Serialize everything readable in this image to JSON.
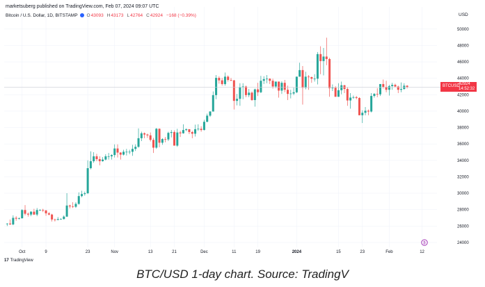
{
  "header": {
    "published": "marketsuberg published on TradingView.com, Feb 07, 2024 09:07 UTC",
    "symbol_title": "Bitcoin / U.S. Dollar, 1D, BITSTAMP",
    "ohlc": {
      "o_label": "O",
      "o": "43093",
      "h_label": "H",
      "h": "43173",
      "l_label": "L",
      "l": "42764",
      "c_label": "C",
      "c": "42924",
      "change": "−168 (−0.39%)"
    }
  },
  "axis": {
    "currency": "USD"
  },
  "price_tag": {
    "symbol": "BTCUSD",
    "last": "42924",
    "countdown": "14:52:32"
  },
  "logo": {
    "mark": "17",
    "text": "TradingView"
  },
  "caption": "BTC/USD 1-day chart. Source: TradingV",
  "colors": {
    "up": "#26a69a",
    "down": "#ef5350",
    "tag": "#f23645",
    "grid": "#f0f3fa"
  },
  "chart_data": {
    "type": "candlestick",
    "title": "Bitcoin / U.S. Dollar, 1D, BITSTAMP",
    "ylabel": "USD",
    "ylim": [
      23400,
      51000
    ],
    "yticks": [
      24000,
      26000,
      28000,
      30000,
      32000,
      34000,
      36000,
      38000,
      40000,
      42000,
      44000,
      46000,
      48000,
      50000
    ],
    "xticks": [
      {
        "label": "Oct",
        "date": "2023-10-01"
      },
      {
        "label": "9",
        "date": "2023-10-09"
      },
      {
        "label": "23",
        "date": "2023-10-23"
      },
      {
        "label": "Nov",
        "date": "2023-11-01"
      },
      {
        "label": "13",
        "date": "2023-11-13"
      },
      {
        "label": "21",
        "date": "2023-11-21"
      },
      {
        "label": "Dec",
        "date": "2023-12-01"
      },
      {
        "label": "11",
        "date": "2023-12-11"
      },
      {
        "label": "19",
        "date": "2023-12-19"
      },
      {
        "label": "2024",
        "date": "2024-01-01"
      },
      {
        "label": "15",
        "date": "2024-01-15"
      },
      {
        "label": "23",
        "date": "2024-01-23"
      },
      {
        "label": "Feb",
        "date": "2024-02-01"
      },
      {
        "label": "12",
        "date": "2024-02-12"
      }
    ],
    "last_price": 42924,
    "grid": true,
    "candles_ohlc": [
      [
        "2023-09-26",
        26250,
        26350,
        26000,
        26300
      ],
      [
        "2023-09-27",
        26300,
        26800,
        26150,
        26200
      ],
      [
        "2023-09-28",
        26200,
        27300,
        26100,
        27000
      ],
      [
        "2023-09-29",
        27000,
        27200,
        26650,
        26900
      ],
      [
        "2023-09-30",
        26900,
        27050,
        26800,
        26950
      ],
      [
        "2023-10-01",
        26950,
        28050,
        26900,
        27950
      ],
      [
        "2023-10-02",
        27950,
        28550,
        27300,
        27500
      ],
      [
        "2023-10-03",
        27500,
        27650,
        27150,
        27400
      ],
      [
        "2023-10-04",
        27400,
        27800,
        27200,
        27750
      ],
      [
        "2023-10-05",
        27750,
        28100,
        27350,
        27400
      ],
      [
        "2023-10-06",
        27400,
        28200,
        27200,
        27950
      ],
      [
        "2023-10-07",
        27950,
        28050,
        27850,
        27950
      ],
      [
        "2023-10-08",
        27950,
        28100,
        27700,
        27900
      ],
      [
        "2023-10-09",
        27900,
        27950,
        27250,
        27550
      ],
      [
        "2023-10-10",
        27550,
        27700,
        27300,
        27400
      ],
      [
        "2023-10-11",
        27400,
        27500,
        26550,
        26800
      ],
      [
        "2023-10-12",
        26800,
        26900,
        26550,
        26750
      ],
      [
        "2023-10-13",
        26750,
        27100,
        26700,
        26850
      ],
      [
        "2023-10-14",
        26850,
        26950,
        26800,
        26850
      ],
      [
        "2023-10-15",
        26850,
        27300,
        26800,
        27150
      ],
      [
        "2023-10-16",
        27150,
        30000,
        27100,
        28500
      ],
      [
        "2023-10-17",
        28500,
        28600,
        28150,
        28400
      ],
      [
        "2023-10-18",
        28400,
        28900,
        28200,
        28350
      ],
      [
        "2023-10-19",
        28350,
        28900,
        28200,
        28700
      ],
      [
        "2023-10-20",
        28700,
        30100,
        28600,
        29650
      ],
      [
        "2023-10-21",
        29650,
        30300,
        29500,
        29900
      ],
      [
        "2023-10-22",
        29900,
        30200,
        29700,
        30000
      ],
      [
        "2023-10-23",
        30000,
        34000,
        29900,
        33050
      ],
      [
        "2023-10-24",
        33050,
        35100,
        32900,
        33900
      ],
      [
        "2023-10-25",
        33900,
        35000,
        33700,
        34500
      ],
      [
        "2023-10-26",
        34500,
        34800,
        33900,
        34150
      ],
      [
        "2023-10-27",
        34150,
        34500,
        33400,
        33900
      ],
      [
        "2023-10-28",
        33900,
        34400,
        33850,
        34100
      ],
      [
        "2023-10-29",
        34100,
        34750,
        34000,
        34500
      ],
      [
        "2023-10-30",
        34500,
        34900,
        34100,
        34500
      ],
      [
        "2023-10-31",
        34500,
        34750,
        34100,
        34650
      ],
      [
        "2023-11-01",
        34650,
        35950,
        34350,
        35450
      ],
      [
        "2023-11-02",
        35450,
        35950,
        34350,
        34950
      ],
      [
        "2023-11-03",
        34950,
        35000,
        34100,
        34700
      ],
      [
        "2023-11-04",
        34700,
        35300,
        34600,
        35050
      ],
      [
        "2023-11-05",
        35050,
        35400,
        34600,
        35050
      ],
      [
        "2023-11-06",
        35050,
        35300,
        34750,
        35050
      ],
      [
        "2023-11-07",
        35050,
        35900,
        34550,
        35400
      ],
      [
        "2023-11-08",
        35400,
        35950,
        35150,
        35650
      ],
      [
        "2023-11-09",
        35650,
        37900,
        35550,
        36700
      ],
      [
        "2023-11-10",
        36700,
        37500,
        36350,
        37300
      ],
      [
        "2023-11-11",
        37300,
        37400,
        36700,
        37150
      ],
      [
        "2023-11-12",
        37150,
        37250,
        36750,
        37050
      ],
      [
        "2023-11-13",
        37050,
        37400,
        36300,
        36500
      ],
      [
        "2023-11-14",
        36500,
        36750,
        34900,
        35550
      ],
      [
        "2023-11-15",
        35550,
        37950,
        35400,
        37850
      ],
      [
        "2023-11-16",
        37850,
        37900,
        35600,
        36150
      ],
      [
        "2023-11-17",
        36150,
        36700,
        35900,
        36600
      ],
      [
        "2023-11-18",
        36600,
        36850,
        36200,
        36550
      ],
      [
        "2023-11-19",
        36550,
        37500,
        36350,
        37350
      ],
      [
        "2023-11-20",
        37350,
        37700,
        36800,
        37450
      ],
      [
        "2023-11-21",
        37450,
        37650,
        35800,
        35800
      ],
      [
        "2023-11-22",
        35800,
        37850,
        35650,
        37400
      ],
      [
        "2023-11-23",
        37400,
        37600,
        36850,
        37300
      ],
      [
        "2023-11-24",
        37300,
        38400,
        37250,
        37700
      ],
      [
        "2023-11-25",
        37700,
        37900,
        37550,
        37800
      ],
      [
        "2023-11-26",
        37800,
        37800,
        37200,
        37450
      ],
      [
        "2023-11-27",
        37450,
        37600,
        36700,
        37250
      ],
      [
        "2023-11-28",
        37250,
        38350,
        36900,
        37800
      ],
      [
        "2023-11-29",
        37800,
        38400,
        37600,
        37850
      ],
      [
        "2023-11-30",
        37850,
        38150,
        37500,
        37700
      ],
      [
        "2023-12-01",
        37700,
        38950,
        37650,
        38700
      ],
      [
        "2023-12-02",
        38700,
        39700,
        38650,
        39450
      ],
      [
        "2023-12-03",
        39450,
        40000,
        39300,
        39950
      ],
      [
        "2023-12-04",
        39950,
        42400,
        39950,
        41950
      ],
      [
        "2023-12-05",
        41950,
        44400,
        41450,
        44050
      ],
      [
        "2023-12-06",
        44050,
        44250,
        43350,
        43750
      ],
      [
        "2023-12-07",
        43750,
        44050,
        43100,
        43300
      ],
      [
        "2023-12-08",
        43300,
        44700,
        43100,
        44200
      ],
      [
        "2023-12-09",
        44200,
        44350,
        43600,
        43800
      ],
      [
        "2023-12-10",
        43800,
        44050,
        43650,
        43750
      ],
      [
        "2023-12-11",
        43750,
        43800,
        40200,
        41250
      ],
      [
        "2023-12-12",
        41250,
        42100,
        40700,
        41500
      ],
      [
        "2023-12-13",
        41500,
        43400,
        40650,
        42900
      ],
      [
        "2023-12-14",
        42900,
        43400,
        41450,
        43000
      ],
      [
        "2023-12-15",
        43000,
        43100,
        41700,
        41950
      ],
      [
        "2023-12-16",
        41950,
        42700,
        41700,
        42250
      ],
      [
        "2023-12-17",
        42250,
        42400,
        41250,
        41350
      ],
      [
        "2023-12-18",
        41350,
        42750,
        40550,
        42650
      ],
      [
        "2023-12-19",
        42650,
        43450,
        41850,
        42300
      ],
      [
        "2023-12-20",
        42300,
        44300,
        42200,
        43700
      ],
      [
        "2023-12-21",
        43700,
        44250,
        43300,
        43900
      ],
      [
        "2023-12-22",
        43900,
        44400,
        43400,
        43950
      ],
      [
        "2023-12-23",
        43950,
        44000,
        43300,
        43700
      ],
      [
        "2023-12-24",
        43700,
        43950,
        42750,
        43000
      ],
      [
        "2023-12-25",
        43000,
        43500,
        42800,
        43600
      ],
      [
        "2023-12-26",
        43600,
        43600,
        41650,
        42500
      ],
      [
        "2023-12-27",
        42500,
        43650,
        42100,
        43450
      ],
      [
        "2023-12-28",
        43450,
        43800,
        42300,
        42600
      ],
      [
        "2023-12-29",
        42600,
        43100,
        41350,
        42100
      ],
      [
        "2023-12-30",
        42100,
        42600,
        41550,
        42150
      ],
      [
        "2023-12-31",
        42150,
        42850,
        41950,
        42300
      ],
      [
        "2024-01-01",
        42300,
        44200,
        42200,
        44200
      ],
      [
        "2024-01-02",
        44200,
        45900,
        44200,
        45000
      ],
      [
        "2024-01-03",
        45000,
        45500,
        40800,
        42850
      ],
      [
        "2024-01-04",
        42850,
        44800,
        42650,
        44200
      ],
      [
        "2024-01-05",
        44200,
        44400,
        42600,
        44150
      ],
      [
        "2024-01-06",
        44150,
        44200,
        43450,
        43950
      ],
      [
        "2024-01-07",
        43950,
        44500,
        43600,
        43950
      ],
      [
        "2024-01-08",
        43950,
        47200,
        43250,
        46950
      ],
      [
        "2024-01-09",
        46950,
        47900,
        44500,
        46100
      ],
      [
        "2024-01-10",
        46100,
        47700,
        44350,
        46650
      ],
      [
        "2024-01-11",
        46650,
        48950,
        45600,
        46350
      ],
      [
        "2024-01-12",
        46350,
        46500,
        41750,
        42800
      ],
      [
        "2024-01-13",
        42800,
        43250,
        42450,
        42850
      ],
      [
        "2024-01-14",
        42850,
        43050,
        41750,
        41750
      ],
      [
        "2024-01-15",
        41750,
        43400,
        41750,
        42550
      ],
      [
        "2024-01-16",
        42550,
        43600,
        42050,
        43150
      ],
      [
        "2024-01-17",
        43150,
        43200,
        42200,
        42700
      ],
      [
        "2024-01-18",
        42700,
        42900,
        40650,
        41300
      ],
      [
        "2024-01-19",
        41300,
        42200,
        40300,
        41650
      ],
      [
        "2024-01-20",
        41650,
        41900,
        41500,
        41700
      ],
      [
        "2024-01-21",
        41700,
        41850,
        41450,
        41600
      ],
      [
        "2024-01-22",
        41600,
        41700,
        39500,
        39500
      ],
      [
        "2024-01-23",
        39500,
        40100,
        38550,
        39800
      ],
      [
        "2024-01-24",
        39800,
        40500,
        39500,
        40050
      ],
      [
        "2024-01-25",
        40050,
        40200,
        39500,
        39950
      ],
      [
        "2024-01-26",
        39950,
        42200,
        39850,
        41850
      ],
      [
        "2024-01-27",
        41850,
        42200,
        41650,
        42100
      ],
      [
        "2024-01-28",
        42100,
        42800,
        41700,
        42050
      ],
      [
        "2024-01-29",
        42050,
        43300,
        41850,
        43300
      ],
      [
        "2024-01-30",
        43300,
        43850,
        42750,
        42950
      ],
      [
        "2024-01-31",
        42950,
        43700,
        42300,
        42600
      ],
      [
        "2024-02-01",
        42600,
        43200,
        41900,
        43050
      ],
      [
        "2024-02-02",
        43050,
        43450,
        42600,
        43200
      ],
      [
        "2024-02-03",
        43200,
        43350,
        42900,
        43000
      ],
      [
        "2024-02-04",
        43000,
        43100,
        42200,
        42600
      ],
      [
        "2024-02-05",
        42600,
        43500,
        42300,
        42700
      ],
      [
        "2024-02-06",
        42700,
        43400,
        42600,
        43100
      ],
      [
        "2024-02-07",
        43093,
        43173,
        42764,
        42924
      ]
    ]
  }
}
